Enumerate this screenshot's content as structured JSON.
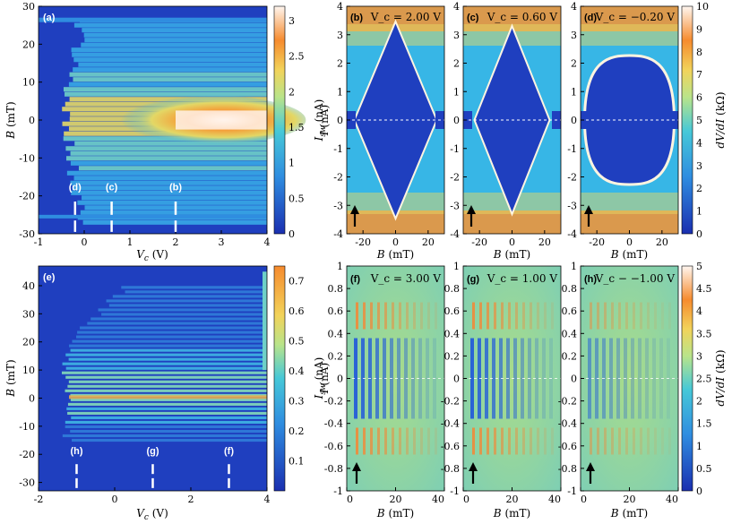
{
  "colors": {
    "low": "#1f3fbf",
    "mid": "#37b6e6",
    "midhigh": "#e8e67a",
    "high": "#f79431",
    "peak": "#fff2e6"
  },
  "panels": {
    "a": {
      "label": "(a)",
      "xlabel": "V_c (V)",
      "ylabel": "B (mT)",
      "xlim": [
        -1,
        4
      ],
      "ylim": [
        -30,
        30
      ],
      "xticks": [
        "-1",
        "0",
        "1",
        "2",
        "3",
        "4"
      ],
      "yticks": [
        "30",
        "20",
        "10",
        "0",
        "-10",
        "-20",
        "-30"
      ],
      "colorbar_label": "I_sw (nA)",
      "colorbar_ticks": [
        "3",
        "2.5",
        "2",
        "1.5",
        "1",
        "0.5",
        "0"
      ],
      "markers": [
        {
          "label": "(d)",
          "vc": -0.2
        },
        {
          "label": "(c)",
          "vc": 0.6
        },
        {
          "label": "(b)",
          "vc": 2.0
        }
      ]
    },
    "e": {
      "label": "(e)",
      "xlabel": "V_c (V)",
      "ylabel": "B (mT)",
      "xlim": [
        -2,
        4
      ],
      "ylim": [
        -33,
        47
      ],
      "xticks": [
        "-2",
        "0",
        "2",
        "4"
      ],
      "yticks": [
        "40",
        "30",
        "20",
        "10",
        "0",
        "-10",
        "-20",
        "-30"
      ],
      "colorbar_label": "I_sw (nA)",
      "colorbar_ticks": [
        "0.7",
        "0.6",
        "0.5",
        "0.4",
        "0.3",
        "0.2",
        "0.1"
      ],
      "markers": [
        {
          "label": "(h)",
          "vc": -1.0
        },
        {
          "label": "(g)",
          "vc": 1.0
        },
        {
          "label": "(f)",
          "vc": 3.0
        }
      ]
    },
    "top_maps": {
      "xlabel": "B (mT)",
      "ylabel": "I (nA)",
      "xticks": [
        "-20",
        "0",
        "20"
      ],
      "yticks": [
        "4",
        "3",
        "2",
        "1",
        "0",
        "-1",
        "-2",
        "-3",
        "-4"
      ],
      "colorbar_label": "dV/dI (kΩ)",
      "colorbar_ticks": [
        "10",
        "9",
        "8",
        "7",
        "6",
        "5",
        "4",
        "3",
        "2",
        "1",
        "0"
      ],
      "items": [
        {
          "label": "(b)",
          "vc_text": "V_c = 2.00 V",
          "vc": 2.0
        },
        {
          "label": "(c)",
          "vc_text": "V_c = 0.60 V",
          "vc": 0.6
        },
        {
          "label": "(d)",
          "vc_text": "V_c = −0.20 V",
          "vc": -0.2
        }
      ]
    },
    "bottom_maps": {
      "xlabel": "B (mT)",
      "ylabel": "I (nA)",
      "xticks": [
        "0",
        "20",
        "40"
      ],
      "yticks": [
        "1",
        "0.8",
        "0.6",
        "0.4",
        "0.2",
        "0",
        "-0.2",
        "-0.4",
        "-0.6",
        "-0.8",
        "-1"
      ],
      "colorbar_label": "dV/dI (kΩ)",
      "colorbar_ticks": [
        "5",
        "4.5",
        "4",
        "3.5",
        "3",
        "2.5",
        "2",
        "1.5",
        "1",
        "0.5",
        "0"
      ],
      "items": [
        {
          "label": "(f)",
          "vc_text": "V_c = 3.00 V",
          "vc": 3.0
        },
        {
          "label": "(g)",
          "vc_text": "V_c = 1.00 V",
          "vc": 1.0
        },
        {
          "label": "(h)",
          "vc_text": "V_c − −1.00 V",
          "vc": -1.0
        }
      ]
    }
  },
  "chart_data": [
    {
      "type": "heatmap",
      "title": "(a)",
      "xlabel": "V_c (V)",
      "ylabel": "B (mT)",
      "xlim": [
        -1,
        4
      ],
      "ylim": [
        -30,
        30
      ],
      "colorbar": {
        "label": "I_sw (nA)",
        "range": [
          0,
          3.2
        ]
      },
      "description_values": {
        "peak_Isw_nA": 3.1,
        "peak_at_B_mT": 0,
        "peak_at_Vc_V": 2.5
      }
    },
    {
      "type": "heatmap",
      "title": "(e)",
      "xlabel": "V_c (V)",
      "ylabel": "B (mT)",
      "xlim": [
        -2,
        4
      ],
      "ylim": [
        -33,
        47
      ],
      "colorbar": {
        "label": "I_sw (nA)",
        "range": [
          0,
          0.75
        ]
      }
    },
    {
      "type": "heatmap",
      "title": "(b)",
      "xlabel": "B (mT)",
      "ylabel": "I (nA)",
      "xlim": [
        -30,
        30
      ],
      "ylim": [
        -4,
        4
      ],
      "colorbar": {
        "label": "dV/dI (kΩ)",
        "range": [
          0,
          10
        ]
      }
    },
    {
      "type": "heatmap",
      "title": "(c)",
      "xlabel": "B (mT)",
      "ylabel": "I (nA)",
      "xlim": [
        -30,
        30
      ],
      "ylim": [
        -4,
        4
      ],
      "colorbar": {
        "label": "dV/dI (kΩ)",
        "range": [
          0,
          10
        ]
      }
    },
    {
      "type": "heatmap",
      "title": "(d)",
      "xlabel": "B (mT)",
      "ylabel": "I (nA)",
      "xlim": [
        -30,
        30
      ],
      "ylim": [
        -4,
        4
      ],
      "colorbar": {
        "label": "dV/dI (kΩ)",
        "range": [
          0,
          10
        ]
      }
    },
    {
      "type": "heatmap",
      "title": "(f)",
      "xlabel": "B (mT)",
      "ylabel": "I (nA)",
      "xlim": [
        0,
        40
      ],
      "ylim": [
        -1,
        1
      ],
      "colorbar": {
        "label": "dV/dI (kΩ)",
        "range": [
          0,
          5
        ]
      }
    },
    {
      "type": "heatmap",
      "title": "(g)",
      "xlabel": "B (mT)",
      "ylabel": "I (nA)",
      "xlim": [
        0,
        40
      ],
      "ylim": [
        -1,
        1
      ],
      "colorbar": {
        "label": "dV/dI (kΩ)",
        "range": [
          0,
          5
        ]
      }
    },
    {
      "type": "heatmap",
      "title": "(h)",
      "xlabel": "B (mT)",
      "ylabel": "I (nA)",
      "xlim": [
        0,
        40
      ],
      "ylim": [
        -1,
        1
      ],
      "colorbar": {
        "label": "dV/dI (kΩ)",
        "range": [
          0,
          5
        ]
      }
    }
  ]
}
